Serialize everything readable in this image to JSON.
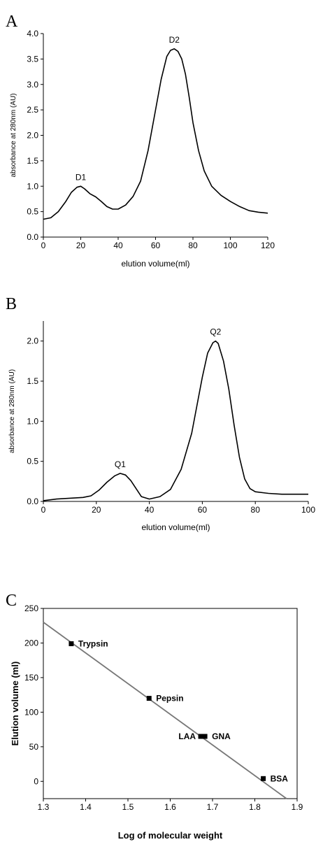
{
  "panels": [
    "A",
    "B",
    "C"
  ],
  "chart_data": [
    {
      "type": "line",
      "xlabel": "elution volume(ml)",
      "ylabel": "absorbance at 280nm (AU)",
      "xlim": [
        0,
        120
      ],
      "ylim": [
        0,
        4.0
      ],
      "xticks": [
        "0",
        "20",
        "40",
        "60",
        "80",
        "100",
        "120"
      ],
      "yticks": [
        "0.0",
        "0.5",
        "1.0",
        "1.5",
        "2.0",
        "2.5",
        "3.0",
        "3.5",
        "4.0"
      ],
      "series": [
        {
          "x": [
            0,
            4,
            8,
            12,
            15,
            18,
            20,
            22,
            25,
            28,
            31,
            34,
            37,
            40,
            44,
            48,
            52,
            56,
            60,
            63,
            66,
            68,
            70,
            72,
            74,
            76,
            78,
            80,
            83,
            86,
            90,
            95,
            100,
            105,
            110,
            115,
            120
          ],
          "y": [
            0.35,
            0.38,
            0.5,
            0.7,
            0.88,
            0.98,
            1.0,
            0.95,
            0.85,
            0.79,
            0.7,
            0.6,
            0.55,
            0.55,
            0.63,
            0.8,
            1.1,
            1.7,
            2.5,
            3.1,
            3.55,
            3.67,
            3.7,
            3.65,
            3.5,
            3.2,
            2.75,
            2.25,
            1.7,
            1.3,
            1.0,
            0.82,
            0.7,
            0.6,
            0.52,
            0.49,
            0.47
          ]
        }
      ],
      "annotations": [
        {
          "text": "D1",
          "x": 20,
          "y": 1.0
        },
        {
          "text": "D2",
          "x": 70,
          "y": 3.7
        }
      ]
    },
    {
      "type": "line",
      "xlabel": "elution volume(ml)",
      "ylabel": "absorbance at 280nm (AU)",
      "xlim": [
        0,
        100
      ],
      "ylim": [
        0,
        2.25
      ],
      "xticks": [
        "0",
        "20",
        "40",
        "60",
        "80",
        "100"
      ],
      "yticks": [
        "0.0",
        "0.5",
        "1.0",
        "1.5",
        "2.0"
      ],
      "series": [
        {
          "x": [
            0,
            5,
            10,
            15,
            18,
            21,
            24,
            27,
            29,
            31,
            33,
            35,
            37,
            40,
            44,
            48,
            52,
            56,
            58,
            60,
            62,
            64,
            65,
            66,
            68,
            70,
            72,
            74,
            76,
            78,
            80,
            85,
            90,
            95,
            100
          ],
          "y": [
            0.01,
            0.03,
            0.04,
            0.05,
            0.07,
            0.14,
            0.24,
            0.32,
            0.35,
            0.33,
            0.26,
            0.16,
            0.06,
            0.03,
            0.06,
            0.15,
            0.4,
            0.85,
            1.2,
            1.55,
            1.85,
            1.98,
            2.0,
            1.97,
            1.75,
            1.4,
            0.95,
            0.55,
            0.28,
            0.16,
            0.12,
            0.1,
            0.09,
            0.09,
            0.09
          ]
        }
      ],
      "annotations": [
        {
          "text": "Q1",
          "x": 29,
          "y": 0.35
        },
        {
          "text": "Q2",
          "x": 65,
          "y": 2.0
        }
      ]
    },
    {
      "type": "scatter",
      "xlabel": "Log of molecular weight",
      "ylabel": "Elution volume (ml)",
      "xlim": [
        1.3,
        1.9
      ],
      "ylim": [
        -25,
        250
      ],
      "xticks": [
        "1.3",
        "1.4",
        "1.5",
        "1.6",
        "1.7",
        "1.8",
        "1.9"
      ],
      "yticks": [
        "0",
        "50",
        "100",
        "150",
        "200",
        "250"
      ],
      "points": [
        {
          "label": "Trypsin",
          "x": 1.366,
          "y": 199
        },
        {
          "label": "Pepsin",
          "x": 1.55,
          "y": 120
        },
        {
          "label": "LAA",
          "x": 1.672,
          "y": 65
        },
        {
          "label": "GNA",
          "x": 1.682,
          "y": 65
        },
        {
          "label": "BSA",
          "x": 1.82,
          "y": 4
        }
      ],
      "fit_line": {
        "x": [
          1.3,
          1.875
        ],
        "y": [
          230,
          -25
        ]
      }
    }
  ]
}
